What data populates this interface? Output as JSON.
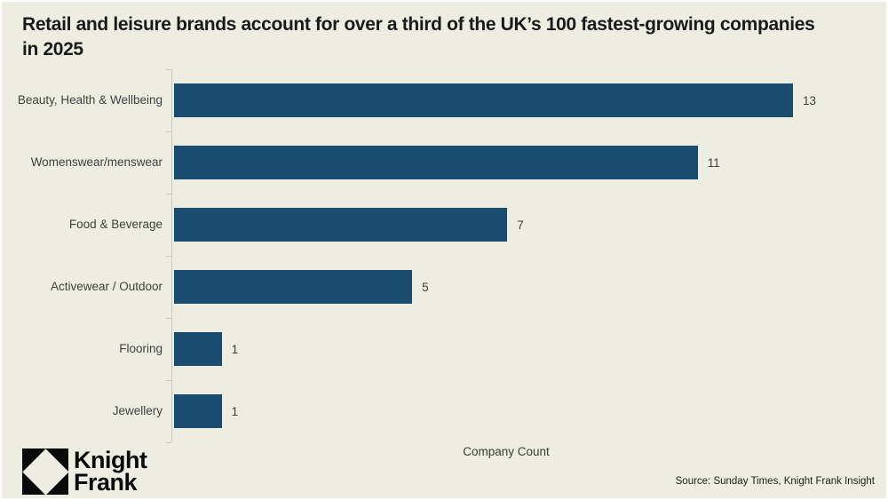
{
  "chart_data": {
    "type": "bar",
    "orientation": "horizontal",
    "title": "Retail and leisure brands account for over a third of the UK’s 100 fastest-growing companies in 2025",
    "categories": [
      "Beauty, Health & Wellbeing",
      "Womenswear/menswear",
      "Food & Beverage",
      "Activewear / Outdoor",
      "Flooring",
      "Jewellery"
    ],
    "values": [
      13,
      11,
      7,
      5,
      1,
      1
    ],
    "xlabel": "Company Count",
    "ylabel": "",
    "xlim": [
      0,
      13
    ],
    "grid": false,
    "legend": "none",
    "data_labels": true,
    "bar_color": "#1A4C70"
  },
  "footer": {
    "source": "Source: Sunday Times, Knight Frank Insight",
    "logo": {
      "line1": "Knight",
      "line2": "Frank"
    }
  },
  "colors": {
    "background": "#EDEEE1",
    "bar": "#1A4C70",
    "label_text": "#3F3F3F",
    "title_text": "#1A1A1A",
    "axis_line": "#C9CABF"
  }
}
